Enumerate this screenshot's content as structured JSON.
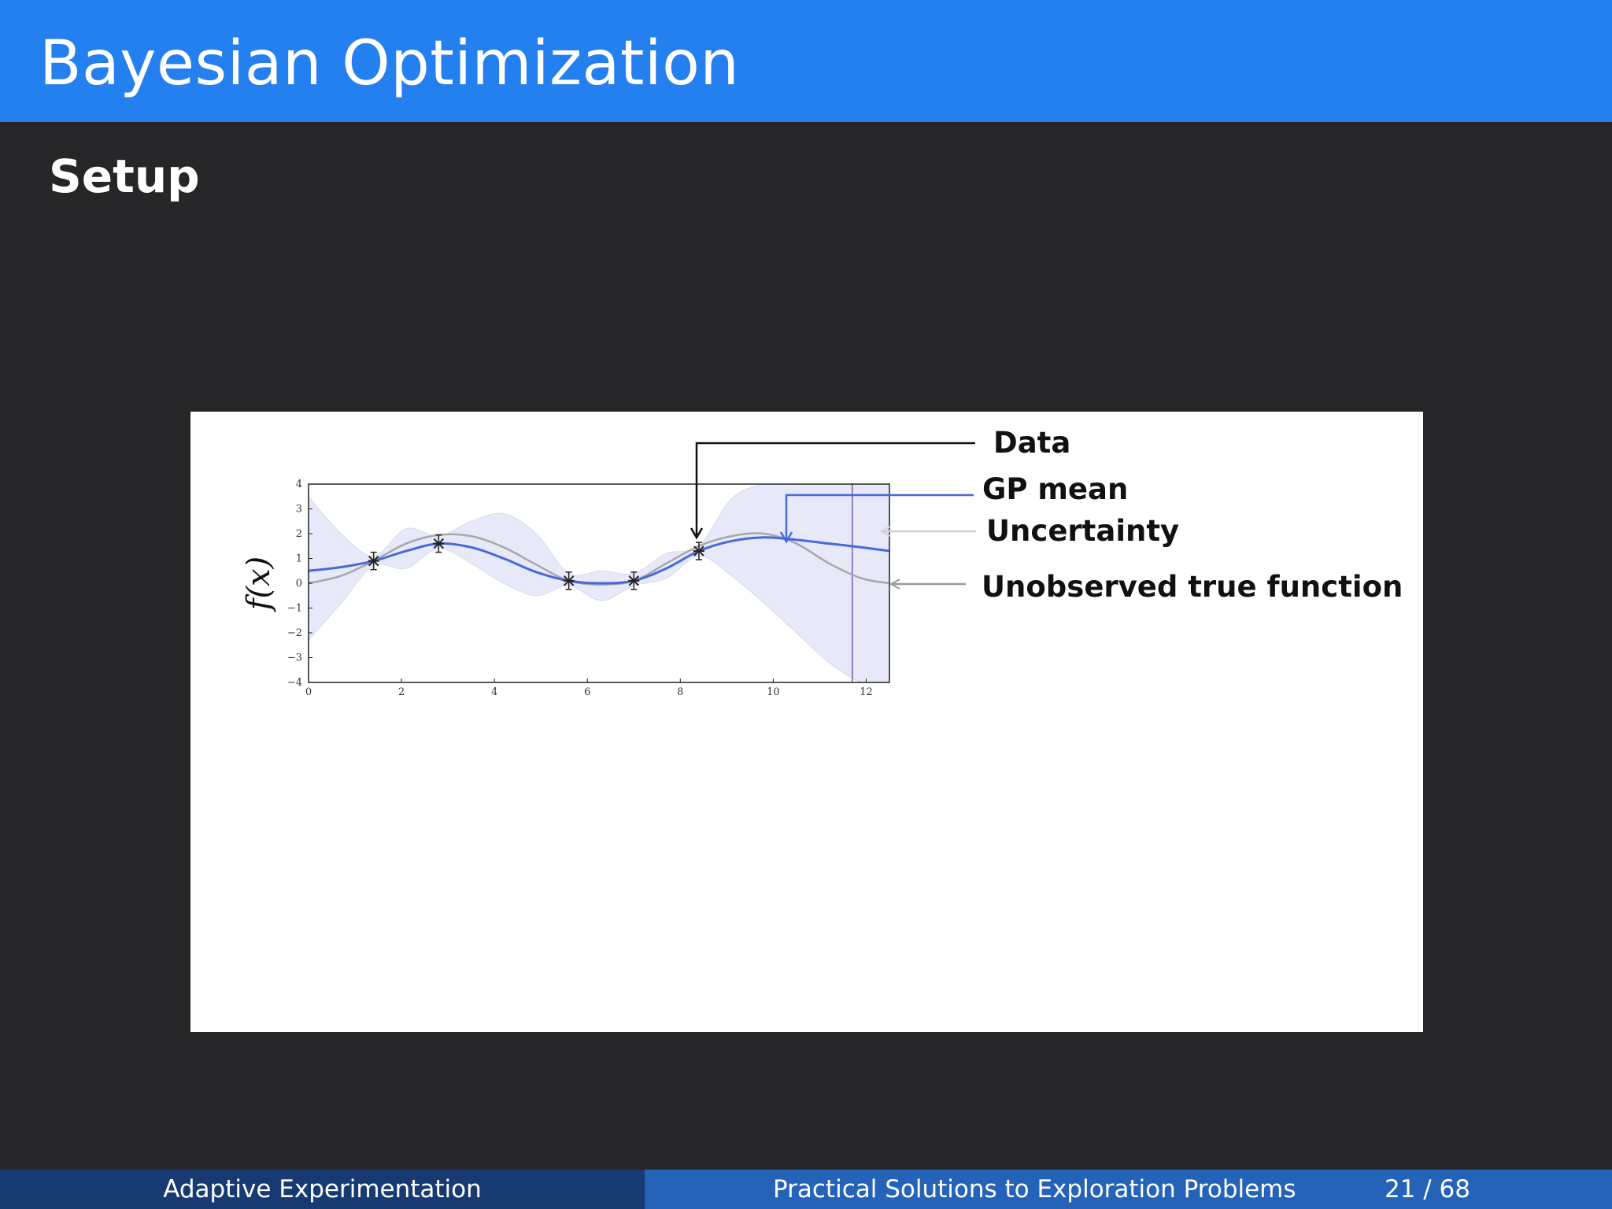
{
  "slide": {
    "title": "Bayesian Optimization",
    "subtitle": "Setup"
  },
  "footer": {
    "left": "Adaptive Experimentation",
    "center": "Practical Solutions to Exploration Problems",
    "page": "21 / 68"
  },
  "chart_data": {
    "type": "line",
    "ylabel": "f(x)",
    "xlim": [
      0,
      12.5
    ],
    "ylim": [
      -4,
      4
    ],
    "xticks": [
      "0",
      "2",
      "4",
      "6",
      "8",
      "10",
      "12"
    ],
    "yticks": [
      "4",
      "3",
      "2",
      "1",
      "0",
      "−1",
      "−2",
      "−3",
      "−4"
    ],
    "grid": false,
    "annotations": {
      "data": "Data",
      "gp_mean": "GP mean",
      "uncertainty": "Uncertainty",
      "true_function": "Unobserved true function"
    },
    "data_points": {
      "x": [
        1.4,
        2.8,
        5.6,
        7.0,
        8.4
      ],
      "y": [
        0.9,
        1.6,
        0.1,
        0.1,
        1.3
      ]
    },
    "series": [
      {
        "name": "GP mean",
        "color": "#4a68d8",
        "x": [
          0,
          0.7,
          1.4,
          2.1,
          2.8,
          3.5,
          4.2,
          4.9,
          5.6,
          6.3,
          7.0,
          7.7,
          8.4,
          9.1,
          9.8,
          10.5,
          11.2,
          11.9,
          12.5
        ],
        "y": [
          0.5,
          0.65,
          0.9,
          1.3,
          1.6,
          1.45,
          1.0,
          0.45,
          0.1,
          0.0,
          0.1,
          0.6,
          1.3,
          1.7,
          1.85,
          1.75,
          1.6,
          1.45,
          1.3
        ]
      },
      {
        "name": "Unobserved true function",
        "color": "#a8a8a8",
        "x": [
          0,
          0.7,
          1.4,
          2.1,
          2.8,
          3.5,
          4.2,
          4.9,
          5.6,
          6.3,
          7.0,
          7.7,
          8.4,
          9.1,
          9.8,
          10.5,
          11.2,
          11.9,
          12.5
        ],
        "y": [
          0.0,
          0.3,
          0.9,
          1.6,
          1.95,
          1.9,
          1.45,
          0.75,
          0.1,
          -0.05,
          0.1,
          0.8,
          1.5,
          1.9,
          2.0,
          1.6,
          0.8,
          0.2,
          0.0
        ]
      }
    ],
    "uncertainty_band": {
      "name": "Uncertainty",
      "color": "#e6e8f8",
      "x": [
        0,
        0.7,
        1.4,
        2.1,
        2.8,
        3.5,
        4.2,
        4.9,
        5.6,
        6.3,
        7.0,
        7.7,
        8.4,
        9.1,
        9.8,
        10.5,
        11.2,
        11.9,
        12.5
      ],
      "lower": [
        -2.3,
        -0.8,
        0.7,
        0.6,
        1.4,
        0.8,
        0.0,
        -0.5,
        -0.1,
        -0.7,
        -0.1,
        0.2,
        1.1,
        0.3,
        -0.8,
        -2.0,
        -3.2,
        -4.0,
        -4.0
      ],
      "upper": [
        3.5,
        2.0,
        1.1,
        2.2,
        1.9,
        2.5,
        2.8,
        2.0,
        0.4,
        0.5,
        0.4,
        1.2,
        1.5,
        3.4,
        4.0,
        4.0,
        4.0,
        4.0,
        4.0
      ]
    },
    "vertical_line_x": 11.7
  }
}
